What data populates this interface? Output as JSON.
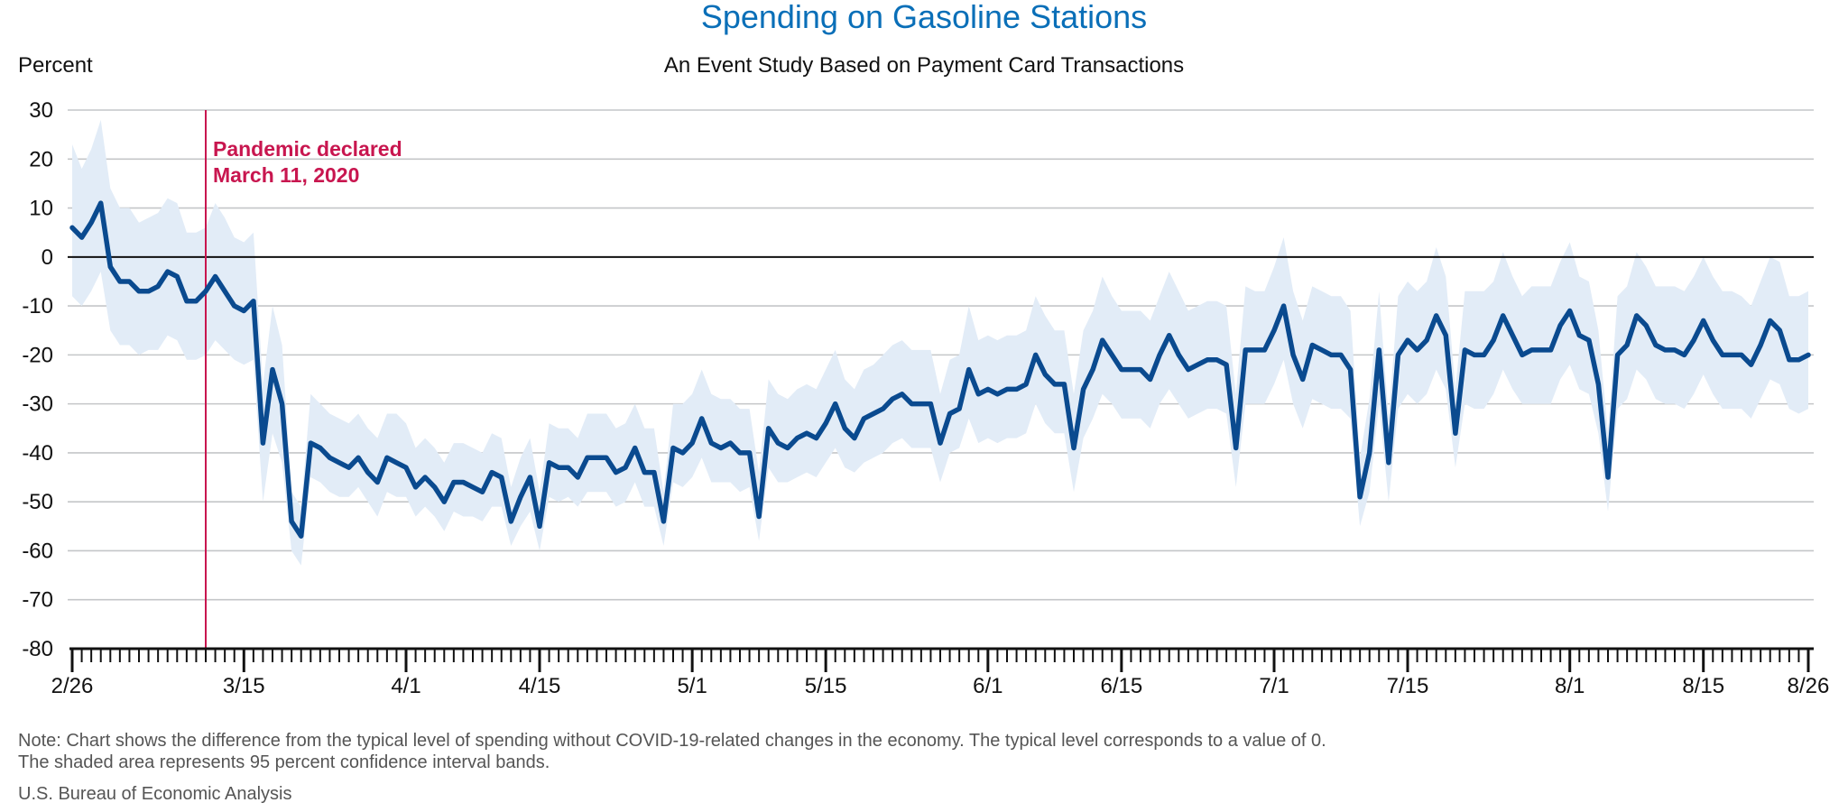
{
  "chart_data": {
    "type": "line",
    "title": "Spending on Gasoline Stations",
    "subtitle": "An Event Study Based on Payment Card Transactions",
    "ylabel": "Percent",
    "ylim": [
      -80,
      30
    ],
    "yticks": [
      30,
      20,
      10,
      0,
      -10,
      -20,
      -30,
      -40,
      -50,
      -60,
      -70,
      -80
    ],
    "xlim": [
      "2020-02-26",
      "2020-08-26"
    ],
    "xtick_dates": [
      "2020-02-26",
      "2020-03-15",
      "2020-04-01",
      "2020-04-15",
      "2020-05-01",
      "2020-05-15",
      "2020-06-01",
      "2020-06-15",
      "2020-07-01",
      "2020-07-15",
      "2020-08-01",
      "2020-08-15",
      "2020-08-26"
    ],
    "xtick_labels": [
      "2/26",
      "3/15",
      "4/1",
      "4/15",
      "5/1",
      "5/15",
      "6/1",
      "6/15",
      "7/1",
      "7/15",
      "8/1",
      "8/15",
      "8/26"
    ],
    "grid": true,
    "annotation": {
      "date": "2020-03-11",
      "lines": [
        "Pandemic declared",
        "March 11, 2020"
      ],
      "color": "#c8164f"
    },
    "series": [
      {
        "color": "#0a4a8f",
        "band_color": "#e2ecf7",
        "x": [
          "2020-02-26",
          "2020-02-27",
          "2020-02-28",
          "2020-02-29",
          "2020-03-01",
          "2020-03-02",
          "2020-03-03",
          "2020-03-04",
          "2020-03-05",
          "2020-03-06",
          "2020-03-07",
          "2020-03-08",
          "2020-03-09",
          "2020-03-10",
          "2020-03-11",
          "2020-03-12",
          "2020-03-13",
          "2020-03-14",
          "2020-03-15",
          "2020-03-16",
          "2020-03-17",
          "2020-03-18",
          "2020-03-19",
          "2020-03-20",
          "2020-03-21",
          "2020-03-22",
          "2020-03-23",
          "2020-03-24",
          "2020-03-25",
          "2020-03-26",
          "2020-03-27",
          "2020-03-28",
          "2020-03-29",
          "2020-03-30",
          "2020-03-31",
          "2020-04-01",
          "2020-04-02",
          "2020-04-03",
          "2020-04-04",
          "2020-04-05",
          "2020-04-06",
          "2020-04-07",
          "2020-04-08",
          "2020-04-09",
          "2020-04-10",
          "2020-04-11",
          "2020-04-12",
          "2020-04-13",
          "2020-04-14",
          "2020-04-15",
          "2020-04-16",
          "2020-04-17",
          "2020-04-18",
          "2020-04-19",
          "2020-04-20",
          "2020-04-21",
          "2020-04-22",
          "2020-04-23",
          "2020-04-24",
          "2020-04-25",
          "2020-04-26",
          "2020-04-27",
          "2020-04-28",
          "2020-04-29",
          "2020-04-30",
          "2020-05-01",
          "2020-05-02",
          "2020-05-03",
          "2020-05-04",
          "2020-05-05",
          "2020-05-06",
          "2020-05-07",
          "2020-05-08",
          "2020-05-09",
          "2020-05-10",
          "2020-05-11",
          "2020-05-12",
          "2020-05-13",
          "2020-05-14",
          "2020-05-15",
          "2020-05-16",
          "2020-05-17",
          "2020-05-18",
          "2020-05-19",
          "2020-05-20",
          "2020-05-21",
          "2020-05-22",
          "2020-05-23",
          "2020-05-24",
          "2020-05-25",
          "2020-05-26",
          "2020-05-27",
          "2020-05-28",
          "2020-05-29",
          "2020-05-30",
          "2020-05-31",
          "2020-06-01",
          "2020-06-02",
          "2020-06-03",
          "2020-06-04",
          "2020-06-05",
          "2020-06-06",
          "2020-06-07",
          "2020-06-08",
          "2020-06-09",
          "2020-06-10",
          "2020-06-11",
          "2020-06-12",
          "2020-06-13",
          "2020-06-14",
          "2020-06-15",
          "2020-06-16",
          "2020-06-17",
          "2020-06-18",
          "2020-06-19",
          "2020-06-20",
          "2020-06-21",
          "2020-06-22",
          "2020-06-23",
          "2020-06-24",
          "2020-06-25",
          "2020-06-26",
          "2020-06-27",
          "2020-06-28",
          "2020-06-29",
          "2020-06-30",
          "2020-07-01",
          "2020-07-02",
          "2020-07-03",
          "2020-07-04",
          "2020-07-05",
          "2020-07-06",
          "2020-07-07",
          "2020-07-08",
          "2020-07-09",
          "2020-07-10",
          "2020-07-11",
          "2020-07-12",
          "2020-07-13",
          "2020-07-14",
          "2020-07-15",
          "2020-07-16",
          "2020-07-17",
          "2020-07-18",
          "2020-07-19",
          "2020-07-20",
          "2020-07-21",
          "2020-07-22",
          "2020-07-23",
          "2020-07-24",
          "2020-07-25",
          "2020-07-26",
          "2020-07-27",
          "2020-07-28",
          "2020-07-29",
          "2020-07-30",
          "2020-07-31",
          "2020-08-01",
          "2020-08-02",
          "2020-08-03",
          "2020-08-04",
          "2020-08-05",
          "2020-08-06",
          "2020-08-07",
          "2020-08-08",
          "2020-08-09",
          "2020-08-10",
          "2020-08-11",
          "2020-08-12",
          "2020-08-13",
          "2020-08-14",
          "2020-08-15",
          "2020-08-16",
          "2020-08-17",
          "2020-08-18",
          "2020-08-19",
          "2020-08-20",
          "2020-08-21",
          "2020-08-22",
          "2020-08-23",
          "2020-08-24",
          "2020-08-25",
          "2020-08-26"
        ],
        "values": [
          6,
          4,
          7,
          11,
          -2,
          -5,
          -5,
          -7,
          -7,
          -6,
          -3,
          -4,
          -9,
          -9,
          -7,
          -4,
          -7,
          -10,
          -11,
          -9,
          -38,
          -23,
          -30,
          -54,
          -57,
          -38,
          -39,
          -41,
          -42,
          -43,
          -41,
          -44,
          -46,
          -41,
          -42,
          -43,
          -47,
          -45,
          -47,
          -50,
          -46,
          -46,
          -47,
          -48,
          -44,
          -45,
          -54,
          -49,
          -45,
          -55,
          -42,
          -43,
          -43,
          -45,
          -41,
          -41,
          -41,
          -44,
          -43,
          -39,
          -44,
          -44,
          -54,
          -39,
          -40,
          -38,
          -33,
          -38,
          -39,
          -38,
          -40,
          -40,
          -53,
          -35,
          -38,
          -39,
          -37,
          -36,
          -37,
          -34,
          -30,
          -35,
          -37,
          -33,
          -32,
          -31,
          -29,
          -28,
          -30,
          -30,
          -30,
          -38,
          -32,
          -31,
          -23,
          -28,
          -27,
          -28,
          -27,
          -27,
          -26,
          -20,
          -24,
          -26,
          -26,
          -39,
          -27,
          -23,
          -17,
          -20,
          -23,
          -23,
          -23,
          -25,
          -20,
          -16,
          -20,
          -23,
          -22,
          -21,
          -21,
          -22,
          -39,
          -19,
          -19,
          -19,
          -15,
          -10,
          -20,
          -25,
          -18,
          -19,
          -20,
          -20,
          -23,
          -49,
          -40,
          -19,
          -42,
          -20,
          -17,
          -19,
          -17,
          -12,
          -16,
          -36,
          -19,
          -20,
          -20,
          -17,
          -12,
          -16,
          -20,
          -19,
          -19,
          -19,
          -14,
          -11,
          -16,
          -17,
          -26,
          -45,
          -20,
          -18,
          -12,
          -14,
          -18,
          -19,
          -19,
          -20,
          -17,
          -13,
          -17,
          -20,
          -20,
          -20,
          -22,
          -18,
          -13,
          -15,
          -21,
          -21,
          -20
        ],
        "lower": [
          -8,
          -10,
          -7,
          -3,
          -15,
          -18,
          -18,
          -20,
          -19,
          -19,
          -16,
          -17,
          -21,
          -21,
          -20,
          -17,
          -19,
          -21,
          -22,
          -21,
          -50,
          -36,
          -42,
          -60,
          -63,
          -45,
          -46,
          -48,
          -49,
          -49,
          -47,
          -50,
          -53,
          -48,
          -49,
          -49,
          -53,
          -51,
          -53,
          -56,
          -52,
          -53,
          -53,
          -54,
          -51,
          -51,
          -59,
          -55,
          -52,
          -60,
          -49,
          -50,
          -49,
          -51,
          -48,
          -48,
          -48,
          -51,
          -50,
          -46,
          -51,
          -51,
          -59,
          -46,
          -47,
          -45,
          -41,
          -46,
          -46,
          -46,
          -48,
          -47,
          -58,
          -43,
          -46,
          -46,
          -45,
          -44,
          -45,
          -42,
          -39,
          -43,
          -44,
          -42,
          -41,
          -40,
          -38,
          -37,
          -39,
          -39,
          -39,
          -46,
          -40,
          -39,
          -33,
          -38,
          -37,
          -38,
          -37,
          -37,
          -36,
          -30,
          -34,
          -36,
          -36,
          -48,
          -37,
          -33,
          -28,
          -30,
          -33,
          -33,
          -33,
          -35,
          -30,
          -27,
          -30,
          -33,
          -32,
          -31,
          -31,
          -32,
          -47,
          -30,
          -30,
          -30,
          -26,
          -21,
          -30,
          -35,
          -29,
          -30,
          -31,
          -31,
          -33,
          -55,
          -48,
          -30,
          -50,
          -31,
          -28,
          -30,
          -28,
          -23,
          -27,
          -43,
          -30,
          -31,
          -31,
          -28,
          -23,
          -27,
          -30,
          -30,
          -30,
          -30,
          -25,
          -22,
          -27,
          -28,
          -36,
          -52,
          -31,
          -29,
          -23,
          -25,
          -29,
          -30,
          -30,
          -31,
          -28,
          -24,
          -28,
          -31,
          -31,
          -31,
          -33,
          -29,
          -25,
          -26,
          -31,
          -32,
          -31
        ],
        "upper": [
          23,
          18,
          22,
          28,
          14,
          10,
          10,
          7,
          8,
          9,
          12,
          11,
          5,
          5,
          6,
          11,
          8,
          4,
          3,
          5,
          -26,
          -10,
          -18,
          -48,
          -51,
          -28,
          -30,
          -32,
          -33,
          -34,
          -32,
          -35,
          -37,
          -32,
          -32,
          -34,
          -39,
          -37,
          -39,
          -42,
          -38,
          -38,
          -39,
          -40,
          -36,
          -37,
          -47,
          -41,
          -37,
          -48,
          -34,
          -35,
          -35,
          -37,
          -32,
          -32,
          -32,
          -35,
          -34,
          -30,
          -35,
          -35,
          -48,
          -30,
          -30,
          -28,
          -23,
          -28,
          -29,
          -29,
          -31,
          -31,
          -44,
          -25,
          -28,
          -29,
          -27,
          -26,
          -27,
          -23,
          -19,
          -25,
          -27,
          -23,
          -22,
          -20,
          -18,
          -17,
          -19,
          -19,
          -19,
          -28,
          -21,
          -20,
          -10,
          -17,
          -16,
          -17,
          -16,
          -16,
          -15,
          -8,
          -12,
          -15,
          -15,
          -28,
          -15,
          -11,
          -4,
          -8,
          -11,
          -11,
          -11,
          -13,
          -8,
          -3,
          -7,
          -11,
          -10,
          -9,
          -9,
          -10,
          -28,
          -6,
          -7,
          -7,
          -2,
          4,
          -7,
          -13,
          -6,
          -7,
          -8,
          -8,
          -11,
          -41,
          -29,
          -7,
          -33,
          -8,
          -5,
          -7,
          -5,
          2,
          -4,
          -27,
          -7,
          -7,
          -7,
          -5,
          1,
          -4,
          -8,
          -6,
          -6,
          -6,
          -1,
          3,
          -4,
          -5,
          -15,
          -36,
          -8,
          -6,
          1,
          -2,
          -6,
          -6,
          -6,
          -7,
          -4,
          0,
          -4,
          -7,
          -7,
          -8,
          -10,
          -5,
          0,
          -1,
          -8,
          -8,
          -7
        ]
      }
    ],
    "notes": [
      "Note: Chart shows the difference from the typical level of spending without COVID-19-related changes in the economy. The typical level corresponds to a value of 0.",
      "The shaded area represents 95 percent confidence interval bands."
    ],
    "source": "U.S. Bureau of Economic Analysis"
  }
}
